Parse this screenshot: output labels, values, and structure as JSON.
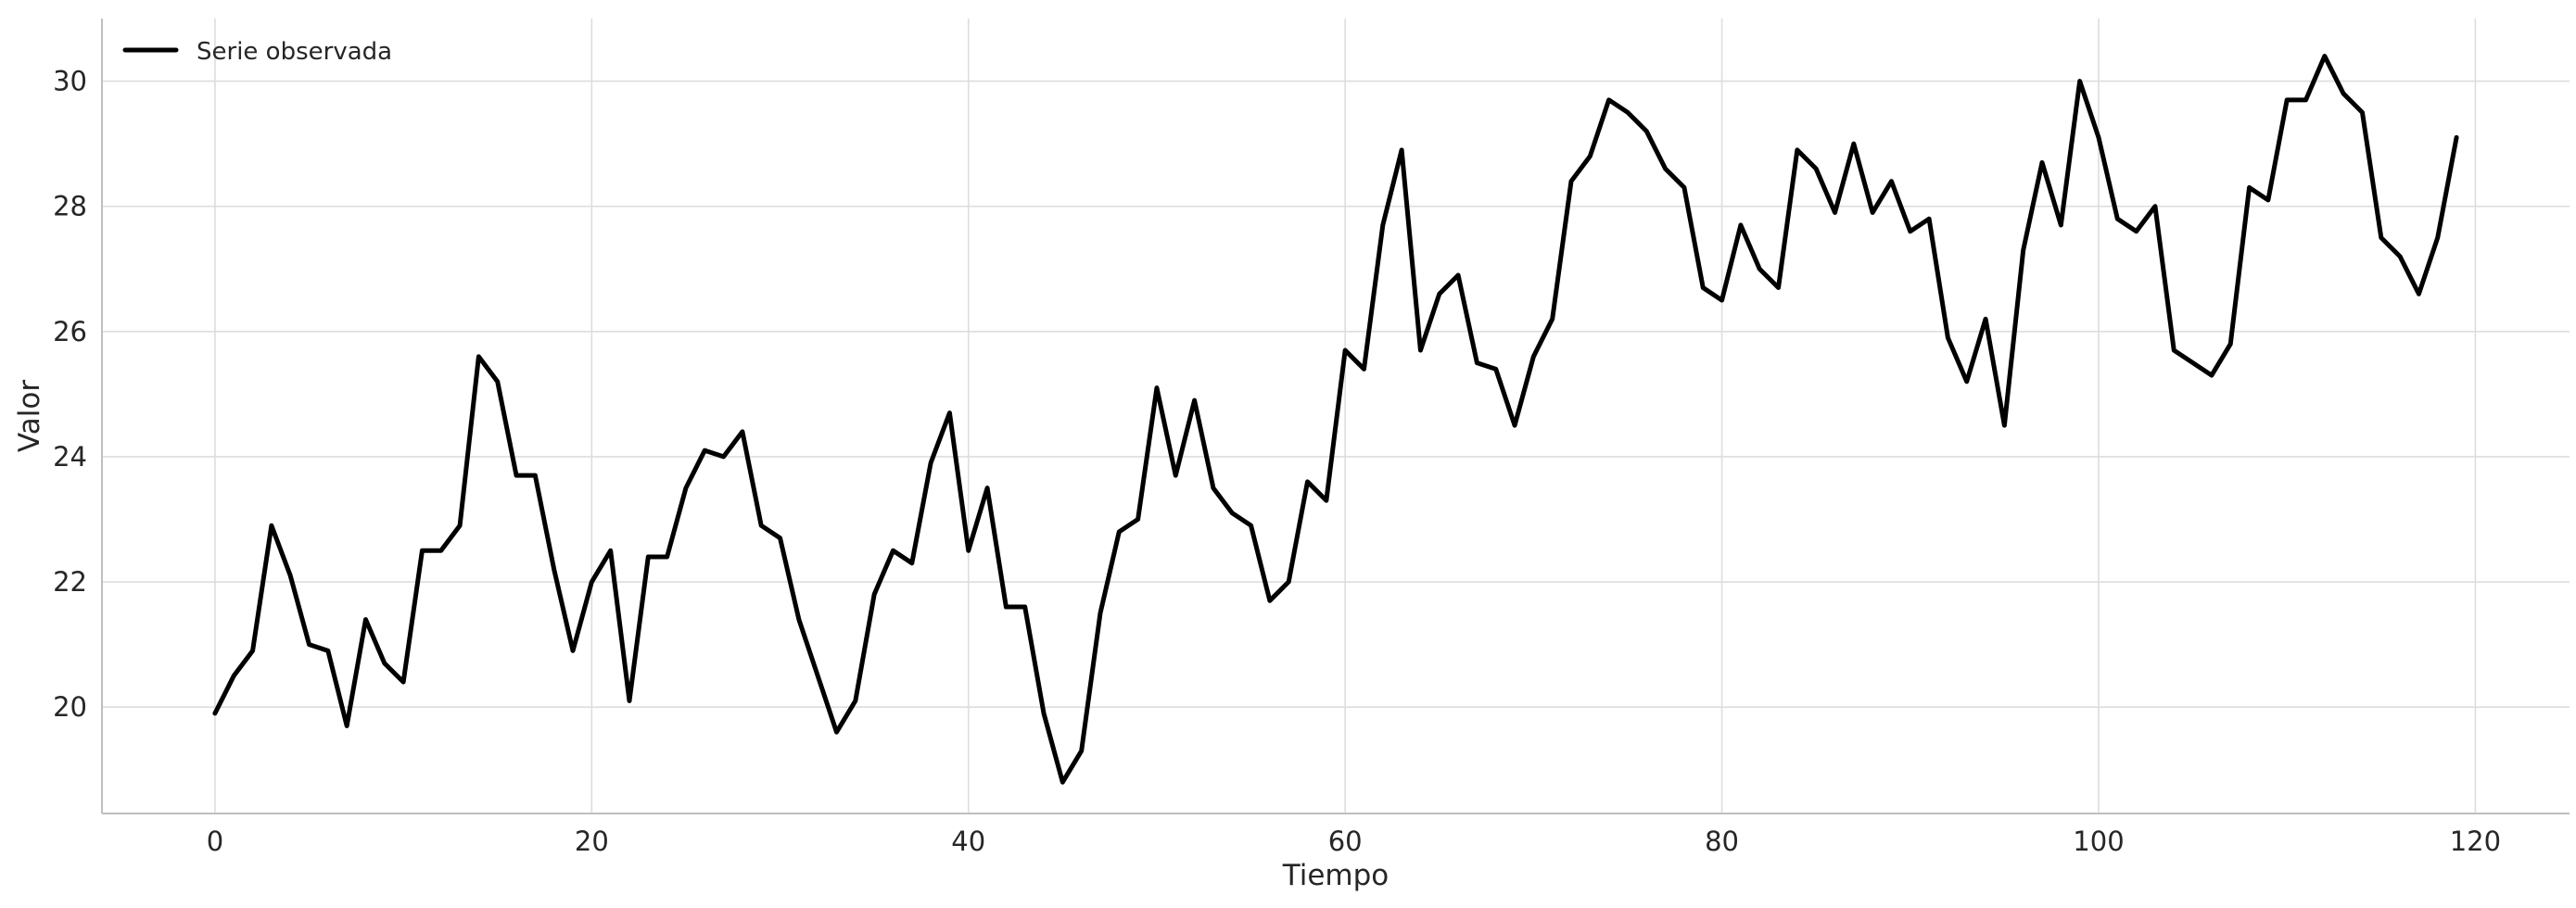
{
  "chart_data": {
    "type": "line",
    "title": "",
    "xlabel": "Tiempo",
    "ylabel": "Valor",
    "xlim": [
      -6,
      125
    ],
    "ylim": [
      18.3,
      31.0
    ],
    "xticks": [
      0,
      20,
      40,
      60,
      80,
      100,
      120
    ],
    "yticks": [
      20,
      22,
      24,
      26,
      28,
      30
    ],
    "grid": true,
    "legend": "top-left",
    "colors": {
      "line": "#000000",
      "grid": "#dddddd",
      "text": "#262626"
    },
    "series": [
      {
        "name": "Serie observada",
        "x": [
          0,
          1,
          2,
          3,
          4,
          5,
          6,
          7,
          8,
          9,
          10,
          11,
          12,
          13,
          14,
          15,
          16,
          17,
          18,
          19,
          20,
          21,
          22,
          23,
          24,
          25,
          26,
          27,
          28,
          29,
          30,
          31,
          32,
          33,
          34,
          35,
          36,
          37,
          38,
          39,
          40,
          41,
          42,
          43,
          44,
          45,
          46,
          47,
          48,
          49,
          50,
          51,
          52,
          53,
          54,
          55,
          56,
          57,
          58,
          59,
          60,
          61,
          62,
          63,
          64,
          65,
          66,
          67,
          68,
          69,
          70,
          71,
          72,
          73,
          74,
          75,
          76,
          77,
          78,
          79,
          80,
          81,
          82,
          83,
          84,
          85,
          86,
          87,
          88,
          89,
          90,
          91,
          92,
          93,
          94,
          95,
          96,
          97,
          98,
          99,
          100,
          101,
          102,
          103,
          104,
          105,
          106,
          107,
          108,
          109,
          110,
          111,
          112,
          113,
          114,
          115,
          116,
          117,
          118,
          119
        ],
        "values": [
          19.9,
          20.5,
          20.9,
          22.9,
          22.1,
          21.0,
          20.9,
          19.7,
          21.4,
          20.7,
          20.4,
          22.5,
          22.5,
          22.9,
          25.6,
          25.2,
          23.7,
          23.7,
          22.2,
          20.9,
          22.0,
          22.5,
          20.1,
          22.4,
          22.4,
          23.5,
          24.1,
          24.0,
          24.4,
          22.9,
          22.7,
          21.4,
          20.5,
          19.6,
          20.1,
          21.8,
          22.5,
          22.3,
          23.9,
          24.7,
          22.5,
          23.5,
          21.6,
          21.6,
          19.9,
          18.8,
          19.3,
          21.5,
          22.8,
          23.0,
          25.1,
          23.7,
          24.9,
          23.5,
          23.1,
          22.9,
          21.7,
          22.0,
          23.6,
          23.3,
          25.7,
          25.4,
          27.7,
          28.9,
          25.7,
          26.6,
          26.9,
          25.5,
          25.4,
          24.5,
          25.6,
          26.2,
          28.4,
          28.8,
          29.7,
          29.5,
          29.2,
          28.6,
          28.3,
          26.7,
          26.5,
          27.7,
          27.0,
          26.7,
          28.9,
          28.6,
          27.9,
          29.0,
          27.9,
          28.4,
          27.6,
          27.8,
          25.9,
          25.2,
          26.2,
          24.5,
          27.3,
          28.7,
          27.7,
          30.0,
          29.1,
          27.8,
          27.6,
          28.0,
          25.7,
          25.5,
          25.3,
          25.8,
          28.3,
          28.1,
          29.7,
          29.7,
          30.4,
          29.8,
          29.5,
          27.5,
          27.2,
          26.6,
          27.5,
          29.1
        ]
      }
    ]
  }
}
